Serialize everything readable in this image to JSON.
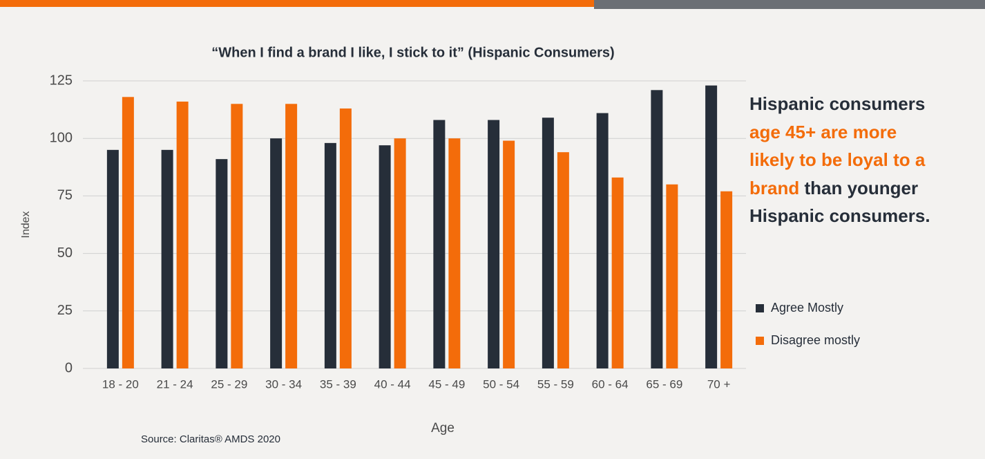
{
  "chart_data": {
    "type": "bar",
    "title": "“When I find a brand I like, I stick to it” (Hispanic Consumers)",
    "x_label": "Age",
    "y_label": "Index",
    "categories": [
      "18 - 20",
      "21 - 24",
      "25 - 29",
      "30 - 34",
      "35 - 39",
      "40 - 44",
      "45 - 49",
      "50 - 54",
      "55 - 59",
      "60 - 64",
      "65 - 69",
      "70 +"
    ],
    "series": [
      {
        "name": "Agree Mostly",
        "color": "#262e39",
        "values": [
          95,
          95,
          91,
          100,
          98,
          97,
          108,
          108,
          109,
          111,
          121,
          123
        ]
      },
      {
        "name": "Disagree mostly",
        "color": "#f36c0a",
        "values": [
          118,
          116,
          115,
          115,
          113,
          100,
          100,
          99,
          94,
          83,
          80,
          77
        ]
      }
    ],
    "ylim": [
      0,
      125
    ],
    "yticks": [
      0,
      25,
      50,
      75,
      100,
      125
    ],
    "grid": true,
    "source": "Source: Claritas® AMDS 2020",
    "annotation": {
      "parts": [
        {
          "text": "Hispanic consumers ",
          "color": "#262e39"
        },
        {
          "text": "age 45+ are more likely to be loyal to a brand",
          "color": "#f36c0a"
        },
        {
          "text": " than younger Hispanic consumers.",
          "color": "#262e39"
        }
      ]
    }
  }
}
